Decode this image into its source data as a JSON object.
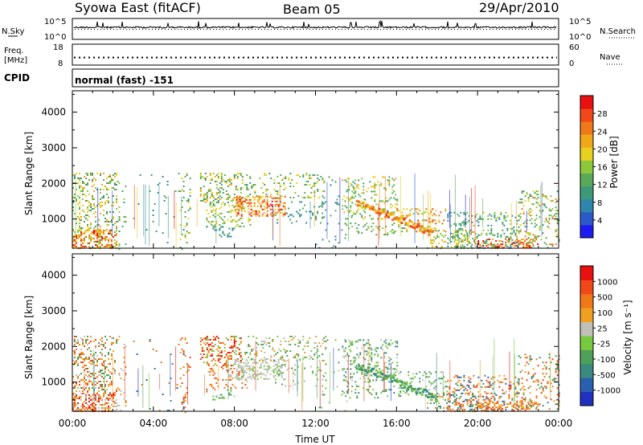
{
  "header": {
    "station": "Syowa East (fitACF)",
    "beam": "Beam 05",
    "date": "29/Apr/2010"
  },
  "top_panel": {
    "left_label": "N.Sky",
    "right_label": "N.Search",
    "left_ticks": [
      "10^5",
      "10^0"
    ],
    "right_ticks": [
      "10^5",
      "10^0"
    ]
  },
  "freq_panel": {
    "left_label_1": "Freq.",
    "left_label_2": "[MHz]",
    "right_label": "Nave",
    "left_ticks": [
      "18",
      "8"
    ],
    "right_ticks": [
      "60",
      "0"
    ],
    "freq_mhz": 11.6
  },
  "cpid": {
    "label": "CPID",
    "value": "normal (fast) -151"
  },
  "chart_data": [
    {
      "type": "heatmap",
      "name": "power",
      "ylabel": "Slant Range [km]",
      "y_ticks": [
        "4000",
        "3000",
        "2000",
        "1000"
      ],
      "ylim": [
        180,
        4600
      ],
      "xlim": [
        0,
        24
      ],
      "colorbar": {
        "label": "Power [dB]",
        "ticks": [
          "28",
          "24",
          "20",
          "16",
          "12",
          "8",
          "4"
        ],
        "colors": [
          "#1c1cf0",
          "#2d59c8",
          "#2e86ac",
          "#3d9a78",
          "#5aa85a",
          "#8cc83c",
          "#e8d020",
          "#f0a818",
          "#f07818",
          "#f04818",
          "#e81010"
        ]
      }
    },
    {
      "type": "heatmap",
      "name": "velocity",
      "ylabel": "Slant Range [km]",
      "y_ticks": [
        "4000",
        "3000",
        "2000",
        "1000"
      ],
      "ylim": [
        180,
        4600
      ],
      "xlim": [
        0,
        24
      ],
      "colorbar": {
        "label": "Velocity [m s⁻¹]",
        "ticks": [
          "1000",
          "500",
          "100",
          "25",
          "-25",
          "-100",
          "-500",
          "-1000"
        ],
        "colors": [
          "#2030c0",
          "#2a60b0",
          "#3a8a80",
          "#4ea05a",
          "#78c840",
          "#c0c0b8",
          "#f0a020",
          "#f07818",
          "#f04818",
          "#e81010"
        ]
      }
    }
  ],
  "x_axis": {
    "ticks": [
      "00:00",
      "04:00",
      "08:00",
      "12:00",
      "16:00",
      "20:00",
      "00:00"
    ],
    "label": "Time UT"
  }
}
